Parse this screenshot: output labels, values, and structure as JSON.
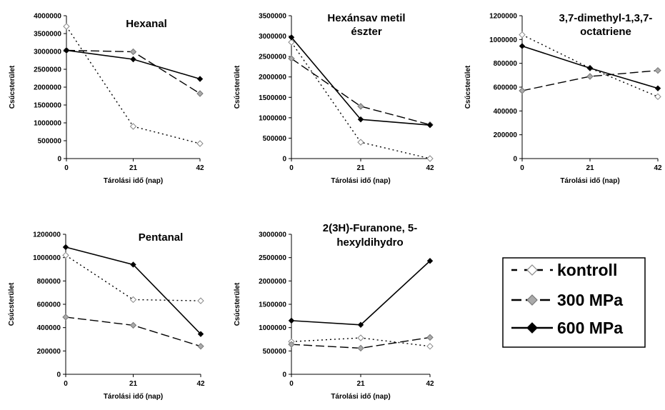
{
  "legend": {
    "entries": [
      {
        "label": "kontroll",
        "style": "dotted",
        "marker": "open-diamond"
      },
      {
        "label": "300 MPa",
        "style": "dashed",
        "marker": "gray-diamond"
      },
      {
        "label": "600 MPa",
        "style": "solid",
        "marker": "black-diamond"
      }
    ]
  },
  "chart_data": [
    {
      "type": "line",
      "title": [
        "Hexanal"
      ],
      "xlabel": "Tárolási idő (nap)",
      "ylabel": "Csúcsterület",
      "x": [
        0,
        21,
        42
      ],
      "ylim": [
        0,
        4000000
      ],
      "yticks": [
        "4000000",
        "3500000",
        "3000000",
        "2500000",
        "2000000",
        "1500000",
        "1000000",
        "500000",
        "0"
      ],
      "series": [
        {
          "name": "kontroll",
          "values": [
            3700000,
            900000,
            420000
          ]
        },
        {
          "name": "300 MPa",
          "values": [
            3030000,
            2990000,
            1820000
          ]
        },
        {
          "name": "600 MPa",
          "values": [
            3030000,
            2780000,
            2230000
          ]
        }
      ]
    },
    {
      "type": "line",
      "title": [
        "Hexánsav metil",
        "észter"
      ],
      "xlabel": "Tárolási idő (nap)",
      "ylabel": "Csúcsterület",
      "x": [
        0,
        21,
        42
      ],
      "ylim": [
        0,
        3500000
      ],
      "yticks": [
        "3500000",
        "3000000",
        "2500000",
        "2000000",
        "1500000",
        "1000000",
        "500000",
        "0"
      ],
      "series": [
        {
          "name": "kontroll",
          "values": [
            2850000,
            400000,
            0
          ]
        },
        {
          "name": "300 MPa",
          "values": [
            2450000,
            1280000,
            830000
          ]
        },
        {
          "name": "600 MPa",
          "values": [
            2970000,
            960000,
            820000
          ]
        }
      ]
    },
    {
      "type": "line",
      "title": [
        "3,7-dimethyl-1,3,7-",
        "octatriene"
      ],
      "xlabel": "Tárolási idő (nap)",
      "ylabel": "Csúcsterület",
      "x": [
        0,
        21,
        42
      ],
      "ylim": [
        0,
        1200000
      ],
      "yticks": [
        "1200000",
        "1000000",
        "800000",
        "600000",
        "400000",
        "200000",
        "0"
      ],
      "series": [
        {
          "name": "kontroll",
          "values": [
            1040000,
            760000,
            520000
          ]
        },
        {
          "name": "300 MPa",
          "values": [
            570000,
            690000,
            740000
          ]
        },
        {
          "name": "600 MPa",
          "values": [
            945000,
            760000,
            590000
          ]
        }
      ]
    },
    {
      "type": "line",
      "title": [
        "Pentanal"
      ],
      "xlabel": "Tárolási idő (nap)",
      "ylabel": "Csúcsterület",
      "x": [
        0,
        21,
        42
      ],
      "ylim": [
        0,
        1200000
      ],
      "yticks": [
        "1200000",
        "1000000",
        "800000",
        "600000",
        "400000",
        "200000",
        "0"
      ],
      "series": [
        {
          "name": "kontroll",
          "values": [
            1020000,
            640000,
            630000
          ]
        },
        {
          "name": "300 MPa",
          "values": [
            490000,
            420000,
            240000
          ]
        },
        {
          "name": "600 MPa",
          "values": [
            1090000,
            940000,
            345000
          ]
        }
      ]
    },
    {
      "type": "line",
      "title": [
        "2(3H)-Furanone, 5-",
        "hexyldihydro"
      ],
      "xlabel": "Tárolási idő (nap)",
      "ylabel": "Csúcsterület",
      "x": [
        0,
        21,
        42
      ],
      "ylim": [
        0,
        3000000
      ],
      "yticks": [
        "3000000",
        "2500000",
        "2000000",
        "1500000",
        "1000000",
        "500000",
        "0"
      ],
      "series": [
        {
          "name": "kontroll",
          "values": [
            700000,
            780000,
            600000
          ]
        },
        {
          "name": "300 MPa",
          "values": [
            640000,
            560000,
            790000
          ]
        },
        {
          "name": "600 MPa",
          "values": [
            1150000,
            1060000,
            2430000
          ]
        }
      ]
    }
  ]
}
